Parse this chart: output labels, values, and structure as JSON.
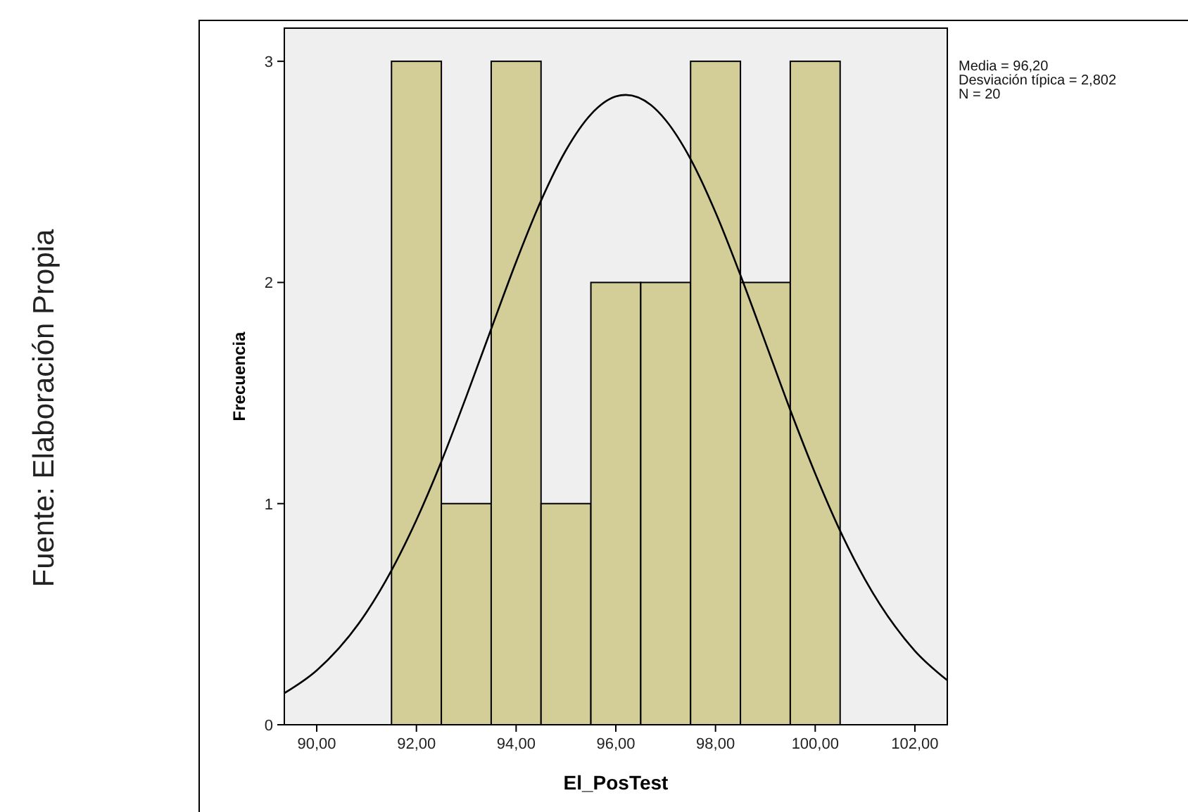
{
  "chart_data": {
    "type": "histogram",
    "xlabel": "El_PosTest",
    "ylabel": "Frecuencia",
    "bins": [
      91.5,
      92.5,
      93.5,
      94.5,
      95.5,
      96.5,
      97.5,
      98.5,
      99.5,
      100.5
    ],
    "series": [
      {
        "color": "#d3ce98",
        "values": [
          3,
          1,
          3,
          1,
          2,
          2,
          3,
          2,
          3
        ]
      },
      {
        "type": "line",
        "color": "#000000",
        "x": [
          89.35,
          90,
          91,
          91.5,
          92,
          92.5,
          93,
          93.5,
          94,
          94.5,
          95,
          95.5,
          96,
          96.2,
          96.7,
          97,
          97.5,
          98,
          98.5,
          99,
          99.5,
          100,
          100.5,
          101,
          102,
          102.65
        ],
        "values": [
          0.143,
          0.246,
          0.509,
          0.698,
          0.926,
          1.19,
          1.484,
          1.79,
          2.093,
          2.37,
          2.598,
          2.76,
          2.841,
          2.848,
          2.803,
          2.734,
          2.558,
          2.317,
          2.033,
          1.729,
          1.423,
          1.136,
          0.877,
          0.657,
          0.334,
          0.201
        ]
      }
    ],
    "xlim": [
      89.35,
      102.65
    ],
    "xticks": [
      {
        "value": 90,
        "label": "90,00"
      },
      {
        "value": 92,
        "label": "92,00"
      },
      {
        "value": 94,
        "label": "94,00"
      },
      {
        "value": 96,
        "label": "96,00"
      },
      {
        "value": 98,
        "label": "98,00"
      },
      {
        "value": 100,
        "label": "100,00"
      },
      {
        "value": 102,
        "label": "102,00"
      }
    ],
    "ylim": [
      0,
      3.15
    ],
    "yticks": [
      0,
      1,
      2,
      3
    ],
    "grid": false,
    "annotations": [
      "Media = 96,20\nDesviación típica = 2,802\nN = 20",
      "Fuente: Elaboración Propia"
    ]
  }
}
